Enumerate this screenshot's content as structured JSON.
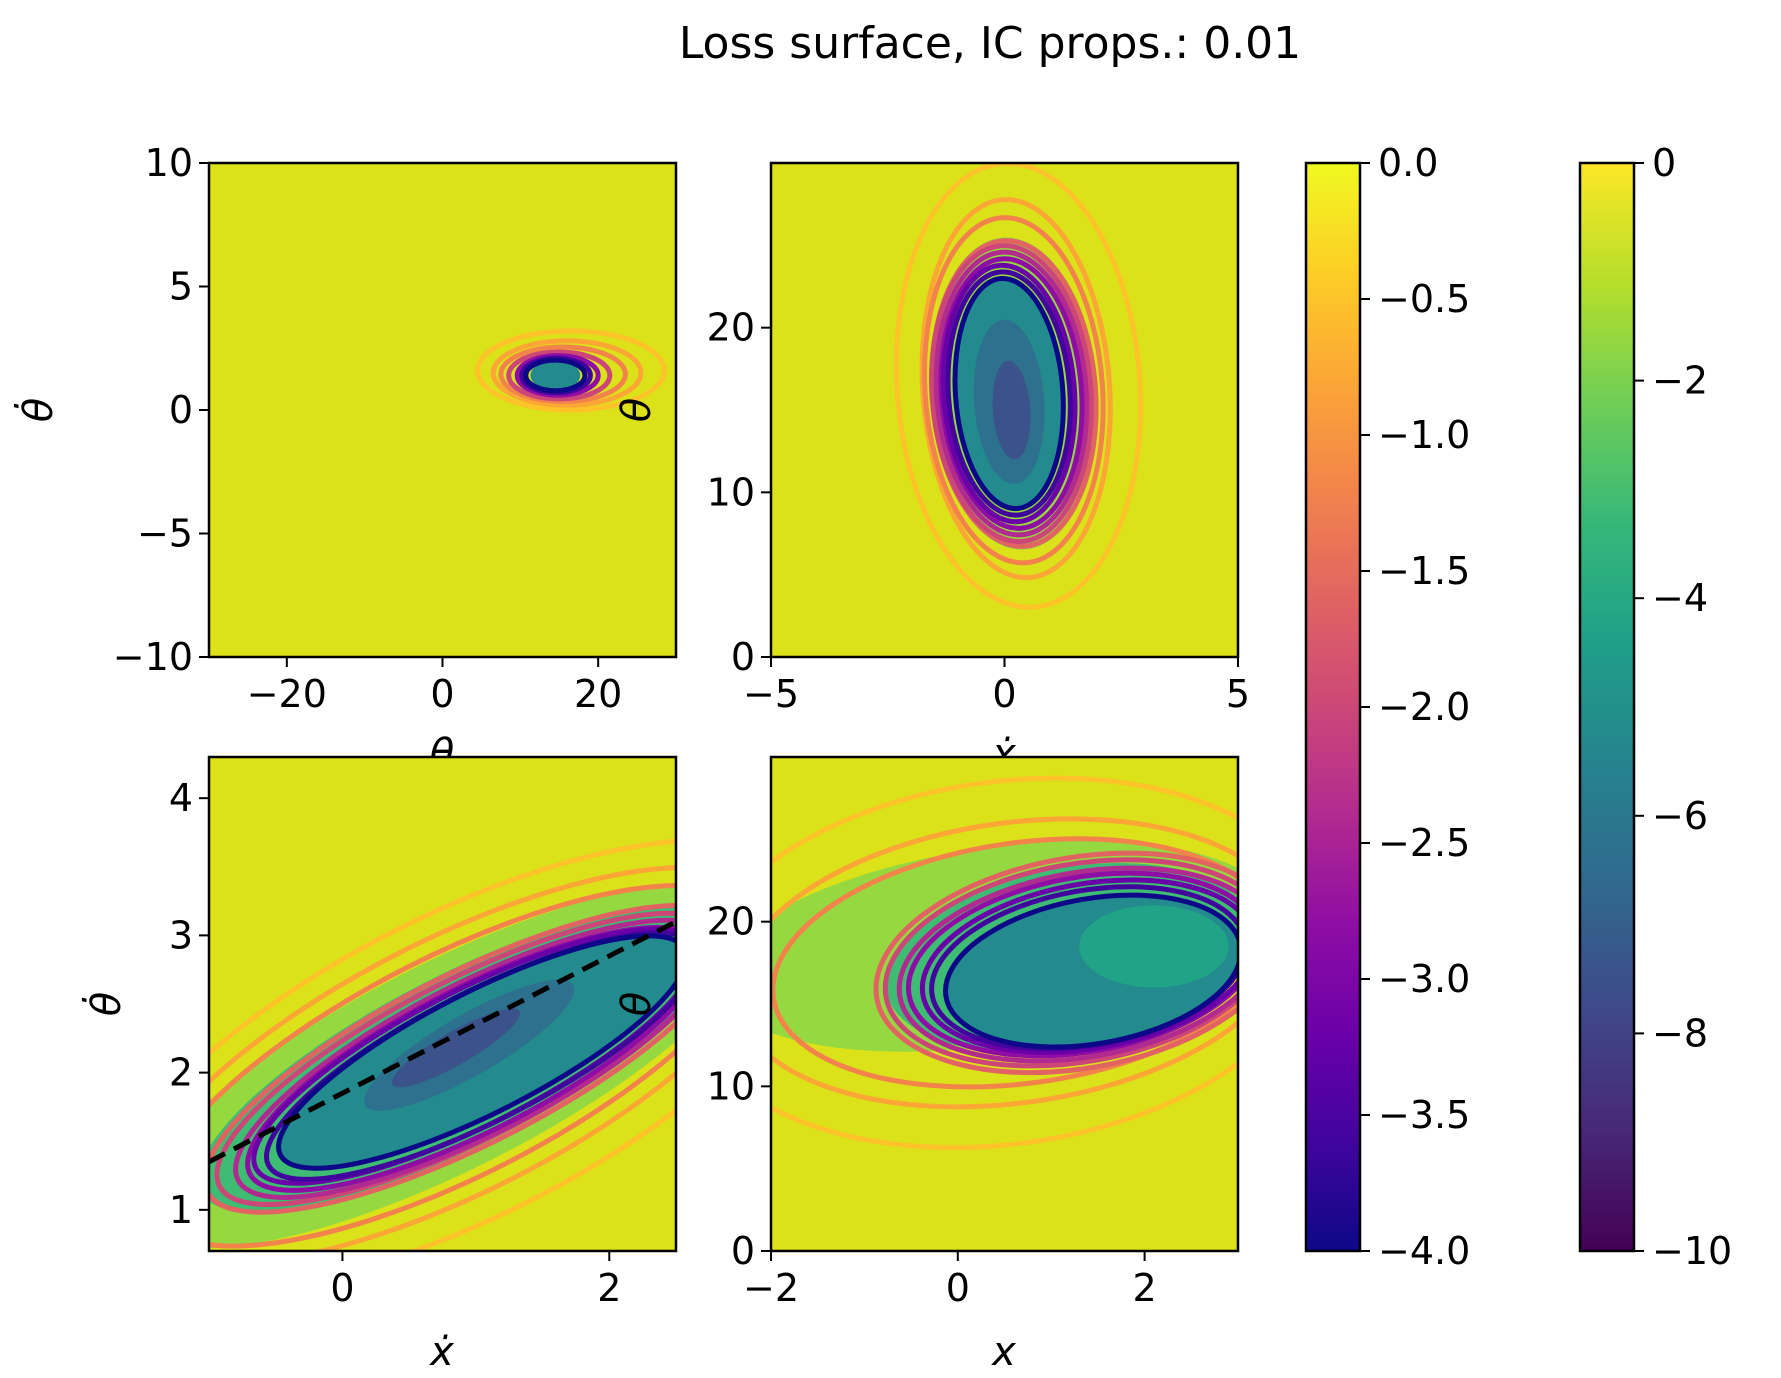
{
  "figure": {
    "title": "Loss surface, IC props.: 0.01"
  },
  "colors": {
    "background_fill": "#dce219",
    "fill_levels": [
      "#95d840",
      "#3fbc73",
      "#20a386",
      "#238a8d",
      "#2d718e",
      "#3b528b"
    ],
    "contour_lines": [
      "#fdc328",
      "#fca636",
      "#f2844b",
      "#e16462",
      "#cc4778",
      "#b12a90",
      "#8f0da4",
      "#6a00a8",
      "#41049d",
      "#0d0887"
    ],
    "dashed_line": "#000000"
  },
  "chart_data": [
    {
      "type": "contour",
      "panel": "top-left",
      "xlabel": "θ",
      "ylabel": "θ̇",
      "xlim": [
        -30,
        30
      ],
      "ylim": [
        -10,
        10
      ],
      "xticks": [
        -20,
        0,
        20
      ],
      "yticks": [
        -10,
        -5,
        0,
        5,
        10
      ],
      "minimum": {
        "x": 14.5,
        "y": 1.4
      },
      "blobs": [
        {
          "level": 3,
          "cx": 14.5,
          "cy": 1.4,
          "rx": 3.2,
          "ry": 0.6,
          "rot": 0
        },
        {
          "line": 0,
          "cx": 16.5,
          "cy": 1.6,
          "rx": 12.0,
          "ry": 1.6,
          "rot": 0
        },
        {
          "line": 1,
          "cx": 16.0,
          "cy": 1.5,
          "rx": 9.5,
          "ry": 1.3,
          "rot": 0
        },
        {
          "line": 2,
          "cx": 15.5,
          "cy": 1.45,
          "rx": 8.0,
          "ry": 1.1,
          "rot": 0
        },
        {
          "line": 4,
          "cx": 15.0,
          "cy": 1.4,
          "rx": 6.5,
          "ry": 0.95,
          "rot": 0
        },
        {
          "line": 6,
          "cx": 14.8,
          "cy": 1.4,
          "rx": 5.2,
          "ry": 0.8,
          "rot": 0
        },
        {
          "line": 8,
          "cx": 14.6,
          "cy": 1.4,
          "rx": 4.4,
          "ry": 0.7,
          "rot": 0
        },
        {
          "line": 9,
          "cx": 14.5,
          "cy": 1.4,
          "rx": 3.8,
          "ry": 0.62,
          "rot": 0
        }
      ]
    },
    {
      "type": "contour",
      "panel": "top-right",
      "xlabel": "ẋ",
      "ylabel": "θ",
      "xlim": [
        -5,
        5
      ],
      "ylim": [
        0,
        30
      ],
      "xticks": [
        -5,
        0,
        5
      ],
      "yticks": [
        0,
        10,
        20
      ],
      "minimum": {
        "x": 0.1,
        "y": 15.5
      },
      "blobs": [
        {
          "line": 0,
          "cx": 0.3,
          "cy": 16.5,
          "rx": 2.6,
          "ry": 13.5,
          "rot": -4
        },
        {
          "line": 1,
          "cx": 0.25,
          "cy": 16.3,
          "rx": 2.0,
          "ry": 11.5,
          "rot": -4
        },
        {
          "line": 2,
          "cx": 0.2,
          "cy": 16.2,
          "rx": 1.9,
          "ry": 10.5,
          "rot": -4
        },
        {
          "level": 0,
          "cx": 0.2,
          "cy": 16.0,
          "rx": 1.8,
          "ry": 9.5,
          "rot": -4
        },
        {
          "line": 3,
          "cx": 0.2,
          "cy": 16.0,
          "rx": 1.75,
          "ry": 9.3,
          "rot": -4
        },
        {
          "line": 4,
          "cx": 0.15,
          "cy": 16.0,
          "rx": 1.7,
          "ry": 9.0,
          "rot": -4
        },
        {
          "line": 5,
          "cx": 0.15,
          "cy": 16.0,
          "rx": 1.6,
          "ry": 8.6,
          "rot": -4
        },
        {
          "line": 6,
          "cx": 0.15,
          "cy": 16.0,
          "rx": 1.5,
          "ry": 8.2,
          "rot": -4
        },
        {
          "line": 7,
          "cx": 0.1,
          "cy": 16.0,
          "rx": 1.4,
          "ry": 7.8,
          "rot": -4
        },
        {
          "line": 8,
          "cx": 0.1,
          "cy": 16.0,
          "rx": 1.3,
          "ry": 7.4,
          "rot": -4
        },
        {
          "level": 3,
          "cx": 0.1,
          "cy": 16.0,
          "rx": 1.15,
          "ry": 7.0,
          "rot": -4
        },
        {
          "line": 9,
          "cx": 0.1,
          "cy": 16.0,
          "rx": 1.15,
          "ry": 7.0,
          "rot": -4
        },
        {
          "level": 4,
          "cx": 0.1,
          "cy": 15.5,
          "rx": 0.75,
          "ry": 5.0,
          "rot": -4
        },
        {
          "level": 5,
          "cx": 0.15,
          "cy": 15.0,
          "rx": 0.4,
          "ry": 3.0,
          "rot": -4
        }
      ]
    },
    {
      "type": "contour",
      "panel": "bottom-left",
      "xlabel": "ẋ",
      "ylabel": "θ̇",
      "xlim": [
        -1.0,
        2.5
      ],
      "ylim": [
        0.7,
        4.3
      ],
      "xticks": [
        0,
        2
      ],
      "yticks": [
        1,
        2,
        3,
        4
      ],
      "dashed_line": {
        "x": [
          -1.0,
          2.5
        ],
        "y": [
          1.35,
          3.1
        ]
      },
      "blobs": [
        {
          "level": 0,
          "cx": 0.8,
          "cy": 2.05,
          "rx": 2.6,
          "ry": 0.75,
          "rot": -27
        },
        {
          "line": 0,
          "cx": 0.9,
          "cy": 2.05,
          "rx": 3.0,
          "ry": 1.1,
          "rot": -27
        },
        {
          "line": 1,
          "cx": 0.85,
          "cy": 2.05,
          "rx": 2.7,
          "ry": 0.92,
          "rot": -27
        },
        {
          "line": 2,
          "cx": 0.85,
          "cy": 2.05,
          "rx": 2.5,
          "ry": 0.8,
          "rot": -27
        },
        {
          "level": 1,
          "cx": 0.9,
          "cy": 2.1,
          "rx": 2.2,
          "ry": 0.62,
          "rot": -27
        },
        {
          "line": 3,
          "cx": 0.95,
          "cy": 2.1,
          "rx": 2.2,
          "ry": 0.62,
          "rot": -27
        },
        {
          "line": 4,
          "cx": 0.95,
          "cy": 2.1,
          "rx": 2.1,
          "ry": 0.58,
          "rot": -27
        },
        {
          "line": 5,
          "cx": 1.0,
          "cy": 2.1,
          "rx": 2.0,
          "ry": 0.55,
          "rot": -27
        },
        {
          "line": 6,
          "cx": 1.0,
          "cy": 2.1,
          "rx": 1.9,
          "ry": 0.52,
          "rot": -27
        },
        {
          "line": 7,
          "cx": 1.0,
          "cy": 2.12,
          "rx": 1.85,
          "ry": 0.49,
          "rot": -27
        },
        {
          "line": 8,
          "cx": 1.05,
          "cy": 2.12,
          "rx": 1.8,
          "ry": 0.47,
          "rot": -27
        },
        {
          "level": 3,
          "cx": 1.05,
          "cy": 2.15,
          "rx": 1.7,
          "ry": 0.44,
          "rot": -27
        },
        {
          "line": 9,
          "cx": 1.05,
          "cy": 2.15,
          "rx": 1.7,
          "ry": 0.44,
          "rot": -27
        },
        {
          "level": 4,
          "cx": 0.95,
          "cy": 2.2,
          "rx": 0.9,
          "ry": 0.22,
          "rot": -30
        },
        {
          "level": 5,
          "cx": 0.85,
          "cy": 2.18,
          "rx": 0.55,
          "ry": 0.12,
          "rot": -30
        }
      ]
    },
    {
      "type": "contour",
      "panel": "bottom-right",
      "xlabel": "x",
      "ylabel": "θ",
      "xlim": [
        -2,
        3
      ],
      "ylim": [
        0,
        30
      ],
      "xticks": [
        -2,
        0,
        2
      ],
      "yticks": [
        0,
        10,
        20
      ],
      "blobs": [
        {
          "level": 0,
          "cx": 0.4,
          "cy": 18.5,
          "rx": 3.0,
          "ry": 6.0,
          "rot": -8
        },
        {
          "line": 0,
          "cx": 0.5,
          "cy": 17.5,
          "rx": 3.4,
          "ry": 11.0,
          "rot": -8
        },
        {
          "line": 1,
          "cx": 0.6,
          "cy": 17.5,
          "rx": 3.0,
          "ry": 8.5,
          "rot": -8
        },
        {
          "line": 2,
          "cx": 0.7,
          "cy": 17.5,
          "rx": 2.7,
          "ry": 7.3,
          "rot": -8
        },
        {
          "level": 1,
          "cx": 1.2,
          "cy": 17.8,
          "rx": 2.0,
          "ry": 5.5,
          "rot": -10
        },
        {
          "line": 3,
          "cx": 1.3,
          "cy": 17.5,
          "rx": 2.2,
          "ry": 6.4,
          "rot": -10
        },
        {
          "line": 4,
          "cx": 1.3,
          "cy": 17.5,
          "rx": 2.1,
          "ry": 6.0,
          "rot": -10
        },
        {
          "line": 5,
          "cx": 1.35,
          "cy": 17.4,
          "rx": 2.0,
          "ry": 5.6,
          "rot": -10
        },
        {
          "line": 6,
          "cx": 1.35,
          "cy": 17.4,
          "rx": 1.9,
          "ry": 5.3,
          "rot": -10
        },
        {
          "line": 7,
          "cx": 1.4,
          "cy": 17.3,
          "rx": 1.8,
          "ry": 5.0,
          "rot": -10
        },
        {
          "line": 8,
          "cx": 1.4,
          "cy": 17.2,
          "rx": 1.7,
          "ry": 4.7,
          "rot": -10
        },
        {
          "level": 3,
          "cx": 1.45,
          "cy": 17.0,
          "rx": 1.6,
          "ry": 4.4,
          "rot": -10
        },
        {
          "line": 9,
          "cx": 1.45,
          "cy": 17.0,
          "rx": 1.6,
          "ry": 4.4,
          "rot": -10
        },
        {
          "level": 2,
          "cx": 2.1,
          "cy": 18.5,
          "rx": 0.8,
          "ry": 2.5,
          "rot": 0
        }
      ]
    }
  ],
  "colorbars": [
    {
      "name": "line-levels",
      "vmin": -4.0,
      "vmax": 0.0,
      "ticks": [
        "0.0",
        "−0.5",
        "−1.0",
        "−1.5",
        "−2.0",
        "−2.5",
        "−3.0",
        "−3.5",
        "−4.0"
      ],
      "gradient": [
        "#0d0887",
        "#41049d",
        "#6a00a8",
        "#8f0da4",
        "#b12a90",
        "#cc4778",
        "#e16462",
        "#f2844b",
        "#fca636",
        "#fcce25",
        "#f0f921"
      ]
    },
    {
      "name": "fill-levels",
      "vmin": -10,
      "vmax": 0,
      "ticks": [
        "0",
        "−2",
        "−4",
        "−6",
        "−8",
        "−10"
      ],
      "gradient": [
        "#440154",
        "#482878",
        "#3e4989",
        "#31688e",
        "#26828e",
        "#1f9e89",
        "#35b779",
        "#6ece58",
        "#b5de2b",
        "#fde725"
      ]
    }
  ]
}
